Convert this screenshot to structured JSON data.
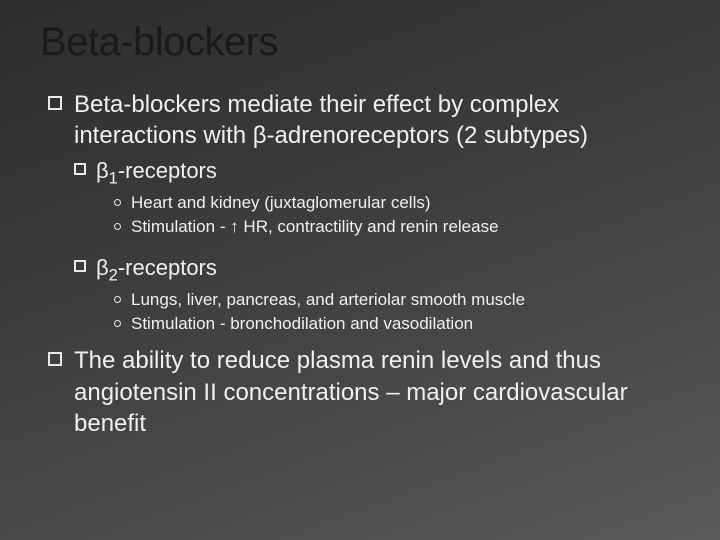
{
  "slide": {
    "title": "Beta-blockers",
    "background_gradient": [
      "#2d2d2d",
      "#3a3a3a",
      "#4a4a4a",
      "#5a5a5a"
    ],
    "title_color": "#1a1a1a",
    "text_color": "#f0f0f0",
    "bullet_border_color": "#e8e8e8",
    "title_fontsize": 40,
    "level1_fontsize": 24,
    "level2_fontsize": 22,
    "level3_fontsize": 17,
    "bullets": {
      "l1_a": "Beta-blockers mediate their effect by complex interactions with β-adrenoreceptors (2 subtypes)",
      "l2_a_prefix": "β",
      "l2_a_sub": "1",
      "l2_a_suffix": "-receptors",
      "l3_a1": "Heart and kidney (juxtaglomerular cells)",
      "l3_a2": "Stimulation - ↑ HR, contractility and renin release",
      "l2_b_prefix": "β",
      "l2_b_sub": "2",
      "l2_b_suffix": "-receptors",
      "l3_b1": "Lungs, liver, pancreas, and arteriolar smooth muscle",
      "l3_b2": "Stimulation - bronchodilation and vasodilation",
      "l1_b": "The ability to reduce plasma renin levels and thus angiotensin II concentrations – major cardiovascular benefit"
    }
  }
}
